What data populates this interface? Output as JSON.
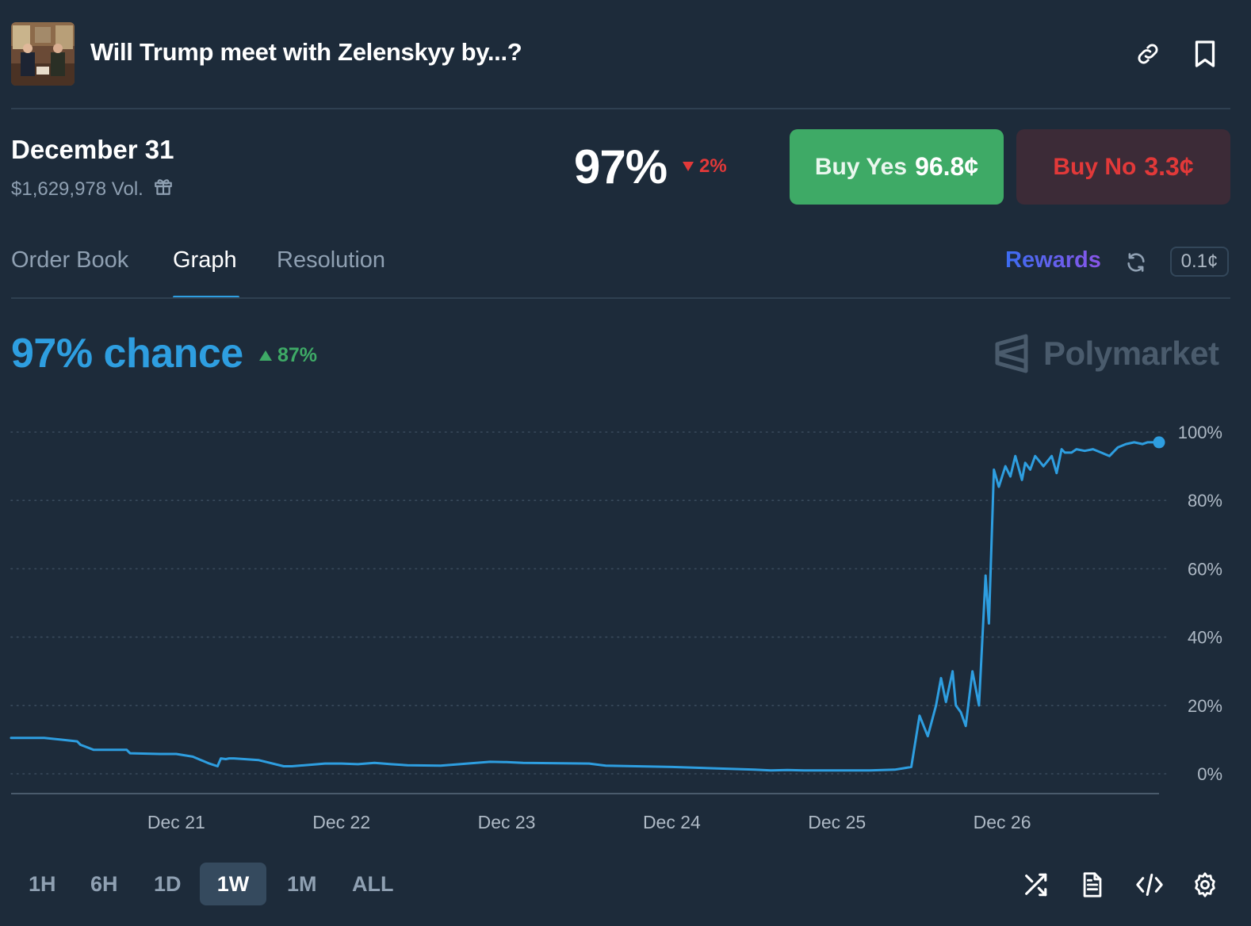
{
  "header": {
    "title": "Will Trump meet with Zelenskyy by...?",
    "thumbnail_icon": "event-photo",
    "actions": [
      "link-icon",
      "bookmark-icon"
    ]
  },
  "market": {
    "title": "December 31",
    "volume": "$1,629,978 Vol.",
    "volume_icon": "gift-icon",
    "percent": "97%",
    "change": "2%",
    "change_direction": "down",
    "buy_yes_label": "Buy Yes",
    "buy_yes_price": "96.8¢",
    "buy_no_label": "Buy No",
    "buy_no_price": "3.3¢"
  },
  "tabs": [
    {
      "label": "Order Book",
      "active": false
    },
    {
      "label": "Graph",
      "active": true
    },
    {
      "label": "Resolution",
      "active": false
    }
  ],
  "rewards_label": "Rewards",
  "tick_size": "0.1¢",
  "chance": {
    "label": "97% chance",
    "change": "87%",
    "change_direction": "up"
  },
  "brand": "Polymarket",
  "colors": {
    "background": "#1d2b3a",
    "accent": "#2e9ee0",
    "yes": "#3eaa66",
    "no": "#e23939"
  },
  "chart_data": {
    "type": "line",
    "x_ticks": [
      "Dec 21",
      "Dec 22",
      "Dec 23",
      "Dec 24",
      "Dec 25",
      "Dec 26"
    ],
    "y_ticks": [
      "0%",
      "20%",
      "40%",
      "60%",
      "80%",
      "100%"
    ],
    "ylim": [
      0,
      100
    ],
    "xlim_days": [
      20,
      26.95
    ],
    "grid": "dotted-horizontal",
    "series": [
      {
        "x": [
          20.0,
          20.2,
          20.3,
          20.4,
          20.42,
          20.5,
          20.7,
          20.72,
          20.9,
          21.0,
          21.1,
          21.2,
          21.25,
          21.27,
          21.3,
          21.32,
          21.35,
          21.5,
          21.65,
          21.7,
          21.9,
          22.0,
          22.1,
          22.2,
          22.3,
          22.4,
          22.6,
          22.9,
          23.0,
          23.1,
          23.5,
          23.6,
          24.0,
          24.5,
          24.6,
          24.7,
          24.8,
          25.0,
          25.2,
          25.35,
          25.45,
          25.5,
          25.55,
          25.6,
          25.63,
          25.66,
          25.7,
          25.72,
          25.75,
          25.78,
          25.82,
          25.86,
          25.9,
          25.92,
          25.95,
          25.98,
          26.02,
          26.05,
          26.08,
          26.12,
          26.14,
          26.17,
          26.2,
          26.25,
          26.3,
          26.33,
          26.36,
          26.38,
          26.42,
          26.45,
          26.5,
          26.55,
          26.6,
          26.65,
          26.7,
          26.75,
          26.8,
          26.85,
          26.88,
          26.92,
          26.95
        ],
        "y": [
          10.5,
          10.5,
          10.0,
          9.5,
          8.5,
          7.0,
          7.0,
          6.0,
          5.8,
          5.8,
          5.0,
          3.0,
          2.2,
          4.5,
          4.3,
          4.5,
          4.5,
          4.0,
          2.2,
          2.2,
          3.0,
          3.0,
          2.8,
          3.2,
          2.8,
          2.5,
          2.4,
          3.5,
          3.4,
          3.2,
          3.0,
          2.4,
          2.0,
          1.2,
          1.0,
          1.1,
          1.0,
          1.0,
          1.0,
          1.2,
          2.0,
          17.0,
          11.0,
          20.0,
          28.0,
          21.0,
          30.0,
          20.0,
          18.0,
          14.0,
          30.0,
          20.0,
          58.0,
          44.0,
          89.0,
          84.0,
          90.0,
          87.0,
          93.0,
          86.0,
          91.0,
          89.0,
          93.0,
          90.0,
          93.0,
          88.0,
          95.0,
          94.0,
          94.0,
          95.0,
          94.5,
          95.0,
          94.0,
          93.0,
          95.5,
          96.5,
          97.0,
          96.5,
          97.0,
          97.0,
          97.0
        ]
      }
    ]
  },
  "time_ranges": [
    {
      "label": "1H",
      "active": false
    },
    {
      "label": "6H",
      "active": false
    },
    {
      "label": "1D",
      "active": false
    },
    {
      "label": "1W",
      "active": true
    },
    {
      "label": "1M",
      "active": false
    },
    {
      "label": "ALL",
      "active": false
    }
  ],
  "footer_icons": [
    "shuffle-icon",
    "document-icon",
    "code-icon",
    "settings-icon"
  ]
}
